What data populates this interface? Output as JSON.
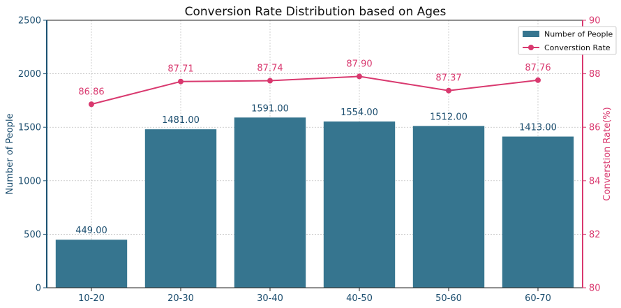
{
  "colors": {
    "bar": "#36758f",
    "line": "#d9396f",
    "left_axis": "#1b5272",
    "tick_text": "#1b4d6e",
    "right_axis": "#d9396f"
  },
  "chart_data": {
    "type": "bar",
    "title": "Conversion Rate Distribution based on Ages",
    "categories": [
      "10-20",
      "20-30",
      "30-40",
      "40-50",
      "50-60",
      "60-70"
    ],
    "series": [
      {
        "name": "Number of People",
        "type": "bar",
        "axis": "left",
        "values": [
          449,
          1481,
          1591,
          1554,
          1512,
          1413
        ],
        "labels": [
          "449.00",
          "1481.00",
          "1591.00",
          "1554.00",
          "1512.00",
          "1413.00"
        ]
      },
      {
        "name": "Converstion Rate",
        "type": "line",
        "axis": "right",
        "values": [
          86.86,
          87.71,
          87.74,
          87.9,
          87.37,
          87.76
        ],
        "labels": [
          "86.86",
          "87.71",
          "87.74",
          "87.90",
          "87.37",
          "87.76"
        ]
      }
    ],
    "ylabel": "Number of People",
    "ylim": [
      0,
      2500
    ],
    "yticks": [
      "0",
      "500",
      "1000",
      "1500",
      "2000",
      "2500"
    ],
    "y2label": "Converstion Rate(%)",
    "y2lim": [
      80,
      90
    ],
    "y2ticks": [
      "80",
      "82",
      "84",
      "86",
      "88",
      "90"
    ],
    "grid": true,
    "legend_position": "top-right"
  }
}
